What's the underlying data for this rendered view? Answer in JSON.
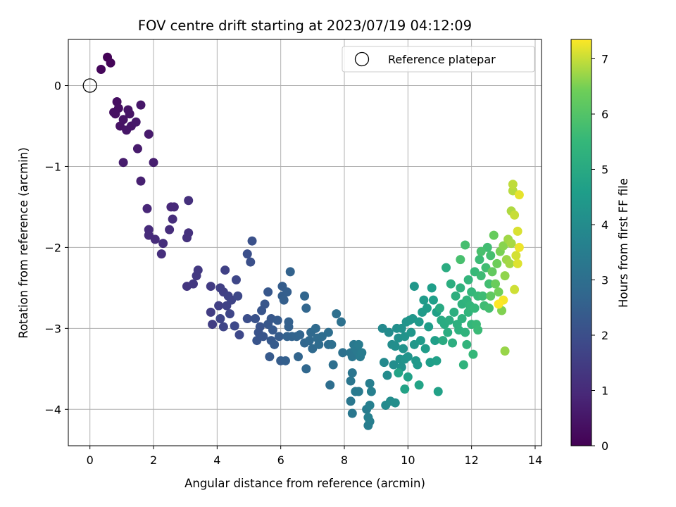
{
  "chart_data": {
    "type": "scatter",
    "title": "FOV centre drift starting at 2023/07/19 04:12:09",
    "xlabel": "Angular distance from reference (arcmin)",
    "ylabel": "Rotation from reference (arcmin)",
    "xlim": [
      -0.68,
      14.2
    ],
    "ylim": [
      -4.45,
      0.57
    ],
    "xticks": [
      0,
      2,
      4,
      6,
      8,
      10,
      12,
      14
    ],
    "yticks": [
      0,
      -1,
      -2,
      -3,
      -4
    ],
    "grid": true,
    "legend": {
      "placement": "top-right",
      "entries": [
        {
          "label": "Reference platepar",
          "marker": "open-circle"
        }
      ]
    },
    "reference_point": {
      "x": 0,
      "y": 0
    },
    "colorbar": {
      "label": "Hours from first FF file",
      "colormap": "viridis",
      "range": [
        0,
        7.35
      ],
      "ticks": [
        0,
        1,
        2,
        3,
        4,
        5,
        6,
        7
      ]
    },
    "points": [
      [
        0.55,
        0.35,
        0.05
      ],
      [
        0.65,
        0.28,
        0.1
      ],
      [
        0.35,
        0.2,
        0.15
      ],
      [
        0.85,
        -0.2,
        0.3
      ],
      [
        0.8,
        -0.35,
        0.35
      ],
      [
        0.95,
        -0.5,
        0.4
      ],
      [
        1.05,
        -0.42,
        0.42
      ],
      [
        1.2,
        -0.3,
        0.45
      ],
      [
        1.3,
        -0.5,
        0.5
      ],
      [
        1.45,
        -0.45,
        0.55
      ],
      [
        1.6,
        -0.24,
        0.5
      ],
      [
        0.9,
        -0.28,
        0.32
      ],
      [
        0.75,
        -0.33,
        0.33
      ],
      [
        1.15,
        -0.55,
        0.48
      ],
      [
        1.85,
        -0.6,
        0.6
      ],
      [
        1.05,
        -0.95,
        0.65
      ],
      [
        1.5,
        -0.78,
        0.62
      ],
      [
        2.0,
        -0.95,
        0.7
      ],
      [
        1.6,
        -1.18,
        0.75
      ],
      [
        1.25,
        -0.35,
        0.44
      ],
      [
        1.8,
        -1.52,
        0.9
      ],
      [
        2.55,
        -1.5,
        0.95
      ],
      [
        2.65,
        -1.5,
        0.97
      ],
      [
        1.85,
        -1.78,
        1.0
      ],
      [
        1.85,
        -1.85,
        1.02
      ],
      [
        2.05,
        -1.9,
        1.05
      ],
      [
        2.5,
        -1.78,
        1.07
      ],
      [
        2.6,
        -1.65,
        1.08
      ],
      [
        2.3,
        -1.95,
        1.1
      ],
      [
        2.25,
        -2.08,
        1.12
      ],
      [
        3.1,
        -1.42,
        1.15
      ],
      [
        3.1,
        -1.82,
        1.18
      ],
      [
        3.05,
        -1.88,
        1.2
      ],
      [
        3.05,
        -2.48,
        1.3
      ],
      [
        3.25,
        -2.45,
        1.35
      ],
      [
        3.35,
        -2.35,
        1.38
      ],
      [
        3.4,
        -2.28,
        1.4
      ],
      [
        3.8,
        -2.48,
        1.45
      ],
      [
        3.8,
        -2.8,
        1.5
      ],
      [
        3.85,
        -2.95,
        1.52
      ],
      [
        4.05,
        -2.72,
        1.55
      ],
      [
        4.1,
        -2.5,
        1.57
      ],
      [
        4.2,
        -2.55,
        1.6
      ],
      [
        4.25,
        -2.28,
        1.62
      ],
      [
        4.3,
        -2.72,
        1.65
      ],
      [
        4.35,
        -2.6,
        1.67
      ],
      [
        4.45,
        -2.65,
        1.7
      ],
      [
        4.1,
        -2.88,
        1.72
      ],
      [
        4.2,
        -2.98,
        1.74
      ],
      [
        4.4,
        -2.82,
        1.76
      ],
      [
        4.6,
        -2.4,
        1.78
      ],
      [
        4.65,
        -2.6,
        1.8
      ],
      [
        4.7,
        -3.08,
        1.82
      ],
      [
        4.55,
        -2.97,
        1.84
      ],
      [
        4.95,
        -2.88,
        2.0
      ],
      [
        4.95,
        -2.08,
        2.02
      ],
      [
        5.05,
        -2.18,
        2.05
      ],
      [
        5.1,
        -1.92,
        2.07
      ],
      [
        5.2,
        -2.88,
        2.1
      ],
      [
        5.3,
        -3.05,
        2.12
      ],
      [
        5.35,
        -2.98,
        2.14
      ],
      [
        5.25,
        -3.15,
        2.16
      ],
      [
        5.4,
        -2.78,
        2.18
      ],
      [
        5.45,
        -3.1,
        2.2
      ],
      [
        5.5,
        -2.7,
        2.22
      ],
      [
        5.6,
        -2.55,
        2.24
      ],
      [
        5.6,
        -2.95,
        2.26
      ],
      [
        5.7,
        -2.88,
        2.28
      ],
      [
        5.75,
        -3.02,
        2.3
      ],
      [
        5.7,
        -3.15,
        2.32
      ],
      [
        5.65,
        -3.35,
        2.34
      ],
      [
        5.8,
        -3.2,
        2.36
      ],
      [
        5.9,
        -2.9,
        2.38
      ],
      [
        5.95,
        -3.1,
        2.4
      ],
      [
        6.0,
        -3.4,
        2.42
      ],
      [
        6.05,
        -2.48,
        2.44
      ],
      [
        6.05,
        -2.6,
        2.46
      ],
      [
        6.1,
        -2.65,
        2.48
      ],
      [
        6.2,
        -2.55,
        2.5
      ],
      [
        6.15,
        -3.4,
        2.52
      ],
      [
        6.25,
        -2.92,
        2.54
      ],
      [
        6.25,
        -2.98,
        2.56
      ],
      [
        6.2,
        -3.1,
        2.58
      ],
      [
        6.3,
        -2.3,
        2.6
      ],
      [
        6.35,
        -3.1,
        2.62
      ],
      [
        6.5,
        -3.1,
        2.64
      ],
      [
        6.55,
        -3.35,
        2.66
      ],
      [
        6.6,
        -3.08,
        2.68
      ],
      [
        6.75,
        -2.6,
        2.7
      ],
      [
        6.8,
        -2.75,
        2.72
      ],
      [
        6.75,
        -3.18,
        2.74
      ],
      [
        6.8,
        -3.5,
        2.76
      ],
      [
        6.9,
        -3.15,
        2.8
      ],
      [
        6.95,
        -3.05,
        2.82
      ],
      [
        7.0,
        -3.25,
        2.84
      ],
      [
        7.1,
        -3.0,
        2.86
      ],
      [
        7.15,
        -3.12,
        2.88
      ],
      [
        7.2,
        -3.2,
        2.9
      ],
      [
        7.3,
        -3.1,
        2.92
      ],
      [
        7.5,
        -3.2,
        2.94
      ],
      [
        7.5,
        -3.05,
        2.96
      ],
      [
        7.55,
        -3.7,
        2.98
      ],
      [
        7.6,
        -3.2,
        3.0
      ],
      [
        7.65,
        -3.45,
        3.02
      ],
      [
        7.75,
        -2.82,
        3.04
      ],
      [
        7.9,
        -2.92,
        3.06
      ],
      [
        7.95,
        -3.3,
        3.08
      ],
      [
        8.2,
        -3.3,
        3.2
      ],
      [
        8.25,
        -3.55,
        3.22
      ],
      [
        8.2,
        -3.65,
        3.24
      ],
      [
        8.25,
        -3.35,
        3.26
      ],
      [
        8.2,
        -3.9,
        3.28
      ],
      [
        8.25,
        -4.05,
        3.3
      ],
      [
        8.3,
        -3.2,
        3.32
      ],
      [
        8.35,
        -3.25,
        3.34
      ],
      [
        8.4,
        -3.28,
        3.36
      ],
      [
        8.35,
        -3.78,
        3.38
      ],
      [
        8.45,
        -3.78,
        3.4
      ],
      [
        8.45,
        -3.2,
        3.42
      ],
      [
        8.5,
        -3.35,
        3.44
      ],
      [
        8.55,
        -3.3,
        3.46
      ],
      [
        8.7,
        -4.0,
        3.48
      ],
      [
        8.75,
        -4.2,
        3.5
      ],
      [
        8.8,
        -4.15,
        3.52
      ],
      [
        8.8,
        -3.68,
        3.54
      ],
      [
        8.85,
        -3.78,
        3.56
      ],
      [
        8.8,
        -3.95,
        3.58
      ],
      [
        8.75,
        -4.1,
        3.6
      ],
      [
        9.2,
        -3.0,
        3.9
      ],
      [
        9.25,
        -3.42,
        3.92
      ],
      [
        9.3,
        -3.95,
        3.94
      ],
      [
        9.35,
        -3.58,
        3.96
      ],
      [
        9.4,
        -3.05,
        3.98
      ],
      [
        9.45,
        -3.9,
        4.0
      ],
      [
        9.5,
        -3.2,
        4.02
      ],
      [
        9.55,
        -3.45,
        4.04
      ],
      [
        9.6,
        -3.22,
        4.06
      ],
      [
        9.6,
        -3.92,
        4.08
      ],
      [
        9.65,
        -3.0,
        4.1
      ],
      [
        9.7,
        -3.12,
        4.12
      ],
      [
        9.75,
        -3.38,
        4.14
      ],
      [
        9.8,
        -3.48,
        4.16
      ],
      [
        9.8,
        -3.0,
        4.18
      ],
      [
        9.85,
        -3.25,
        4.2
      ],
      [
        9.9,
        -3.1,
        4.22
      ],
      [
        9.9,
        -3.38,
        4.24
      ],
      [
        9.95,
        -2.92,
        4.26
      ],
      [
        10.0,
        -3.35,
        4.28
      ],
      [
        10.05,
        -2.9,
        4.3
      ],
      [
        10.1,
        -3.05,
        4.32
      ],
      [
        10.15,
        -2.88,
        4.34
      ],
      [
        10.2,
        -3.2,
        4.36
      ],
      [
        10.2,
        -2.48,
        4.38
      ],
      [
        10.25,
        -3.4,
        4.4
      ],
      [
        10.3,
        -3.45,
        4.42
      ],
      [
        10.35,
        -2.92,
        4.44
      ],
      [
        10.4,
        -3.15,
        4.46
      ],
      [
        10.45,
        -2.8,
        4.48
      ],
      [
        10.5,
        -2.65,
        4.5
      ],
      [
        10.55,
        -3.25,
        4.52
      ],
      [
        10.6,
        -2.75,
        4.54
      ],
      [
        10.65,
        -2.98,
        4.56
      ],
      [
        10.7,
        -3.42,
        4.58
      ],
      [
        10.75,
        -2.5,
        4.6
      ],
      [
        10.8,
        -2.65,
        4.62
      ],
      [
        10.85,
        -3.15,
        4.64
      ],
      [
        10.9,
        -3.4,
        4.66
      ],
      [
        10.9,
        -2.8,
        4.68
      ],
      [
        10.95,
        -3.78,
        4.7
      ],
      [
        10.0,
        -3.6,
        4.72
      ],
      [
        9.9,
        -3.75,
        4.74
      ],
      [
        10.35,
        -3.7,
        4.76
      ],
      [
        9.7,
        -3.55,
        4.78
      ],
      [
        11.0,
        -2.75,
        5.0
      ],
      [
        11.05,
        -2.9,
        5.02
      ],
      [
        11.1,
        -3.15,
        5.04
      ],
      [
        11.15,
        -2.95,
        5.06
      ],
      [
        11.2,
        -2.25,
        5.08
      ],
      [
        11.25,
        -3.05,
        5.1
      ],
      [
        11.3,
        -2.9,
        5.12
      ],
      [
        11.35,
        -2.45,
        5.14
      ],
      [
        11.4,
        -3.18,
        5.16
      ],
      [
        11.45,
        -2.8,
        5.18
      ],
      [
        11.5,
        -2.6,
        5.2
      ],
      [
        11.55,
        -2.95,
        5.22
      ],
      [
        11.6,
        -3.02,
        5.24
      ],
      [
        11.65,
        -2.5,
        5.26
      ],
      [
        11.7,
        -2.88,
        5.28
      ],
      [
        11.7,
        -2.7,
        5.3
      ],
      [
        11.75,
        -3.45,
        5.32
      ],
      [
        11.8,
        -3.05,
        5.34
      ],
      [
        11.85,
        -2.65,
        5.36
      ],
      [
        11.85,
        -3.2,
        5.38
      ],
      [
        11.9,
        -2.8,
        5.4
      ],
      [
        11.9,
        -2.4,
        5.42
      ],
      [
        11.95,
        -2.72,
        5.44
      ],
      [
        12.0,
        -2.95,
        5.46
      ],
      [
        12.0,
        -2.55,
        5.48
      ],
      [
        12.05,
        -3.32,
        5.5
      ],
      [
        12.1,
        -2.75,
        5.52
      ],
      [
        12.1,
        -2.3,
        5.54
      ],
      [
        12.15,
        -2.95,
        5.56
      ],
      [
        12.2,
        -2.6,
        5.58
      ],
      [
        12.2,
        -3.02,
        5.6
      ],
      [
        12.25,
        -2.15,
        5.62
      ],
      [
        12.3,
        -2.35,
        5.64
      ],
      [
        12.35,
        -2.6,
        5.66
      ],
      [
        12.4,
        -2.72,
        5.68
      ],
      [
        12.45,
        -2.25,
        5.7
      ],
      [
        12.5,
        -2.0,
        5.72
      ],
      [
        12.55,
        -2.45,
        5.74
      ],
      [
        12.55,
        -2.75,
        5.76
      ],
      [
        12.6,
        -2.1,
        5.78
      ],
      [
        11.8,
        -1.97,
        5.8
      ],
      [
        11.65,
        -2.15,
        5.82
      ],
      [
        12.3,
        -2.05,
        5.84
      ],
      [
        12.6,
        -2.6,
        6.2
      ],
      [
        12.65,
        -2.3,
        6.25
      ],
      [
        12.7,
        -1.85,
        6.3
      ],
      [
        12.75,
        -2.45,
        6.35
      ],
      [
        12.8,
        -2.2,
        6.4
      ],
      [
        12.85,
        -2.55,
        6.45
      ],
      [
        12.9,
        -2.05,
        6.5
      ],
      [
        12.95,
        -2.78,
        6.55
      ],
      [
        13.0,
        -1.98,
        6.6
      ],
      [
        13.05,
        -2.35,
        6.65
      ],
      [
        13.05,
        -3.28,
        6.7
      ],
      [
        13.1,
        -2.15,
        6.72
      ],
      [
        13.15,
        -1.9,
        6.75
      ],
      [
        13.2,
        -2.2,
        6.78
      ],
      [
        13.25,
        -1.95,
        6.8
      ],
      [
        13.25,
        -1.55,
        6.85
      ],
      [
        13.3,
        -1.3,
        6.9
      ],
      [
        13.3,
        -1.22,
        6.95
      ],
      [
        13.35,
        -1.6,
        7.0
      ],
      [
        13.35,
        -2.52,
        7.05
      ],
      [
        13.4,
        -2.1,
        7.08
      ],
      [
        13.45,
        -1.8,
        7.12
      ],
      [
        13.45,
        -2.2,
        7.15
      ],
      [
        13.5,
        -1.35,
        7.2
      ],
      [
        13.5,
        -2.0,
        7.25
      ],
      [
        13.0,
        -2.65,
        7.3
      ],
      [
        12.85,
        -2.7,
        7.35
      ]
    ]
  }
}
